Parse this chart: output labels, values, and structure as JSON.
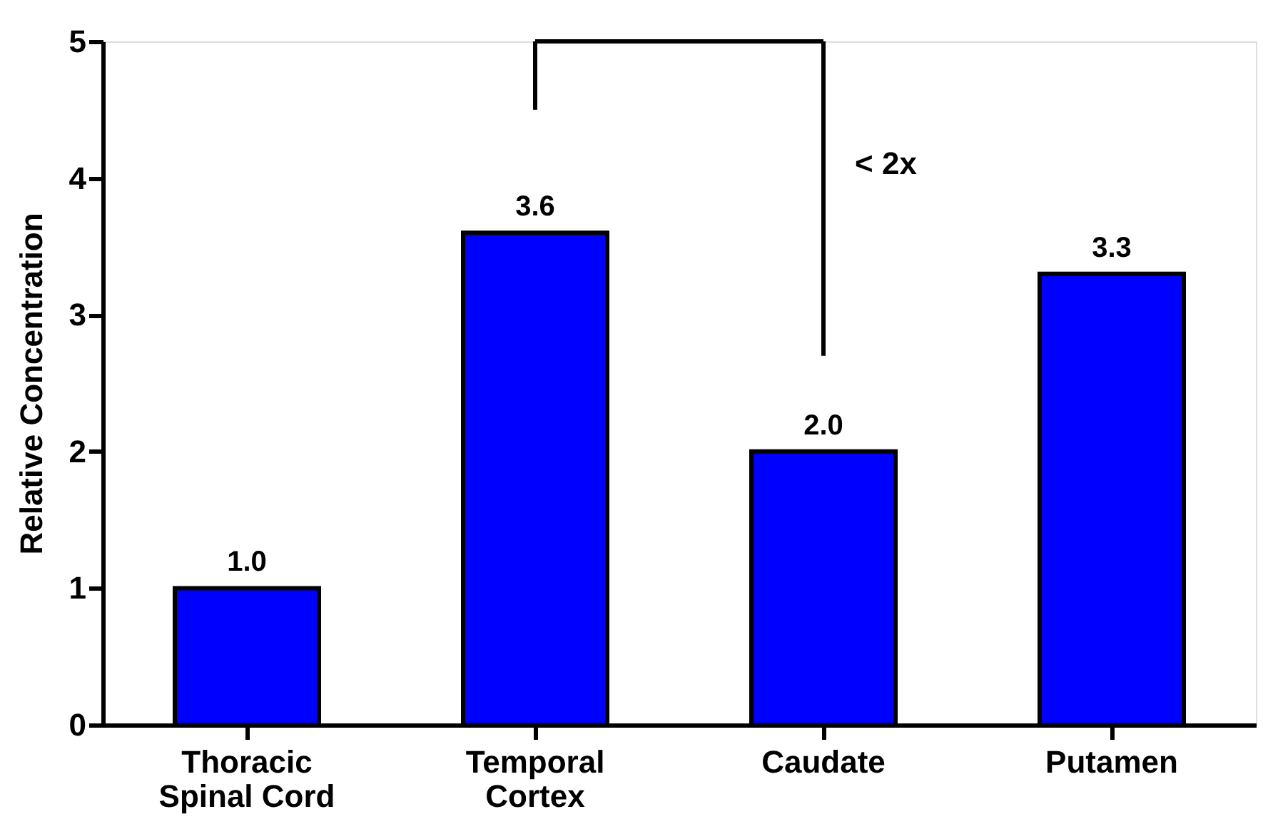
{
  "chart_data": {
    "type": "bar",
    "ylabel": "Relative Concentration",
    "categories": [
      "Thoracic Spinal Cord",
      "Temporal Cortex",
      "Caudate",
      "Putamen"
    ],
    "values": [
      1.0,
      3.6,
      2.0,
      3.3
    ],
    "color": "#0000ff",
    "ylim": [
      0,
      5
    ],
    "yticks": [
      0,
      1,
      2,
      3,
      4,
      5
    ],
    "grid": false,
    "value_labels": [
      "1.0",
      "3.6",
      "2.0",
      "3.3"
    ],
    "annotations": [
      "< 2x"
    ]
  }
}
